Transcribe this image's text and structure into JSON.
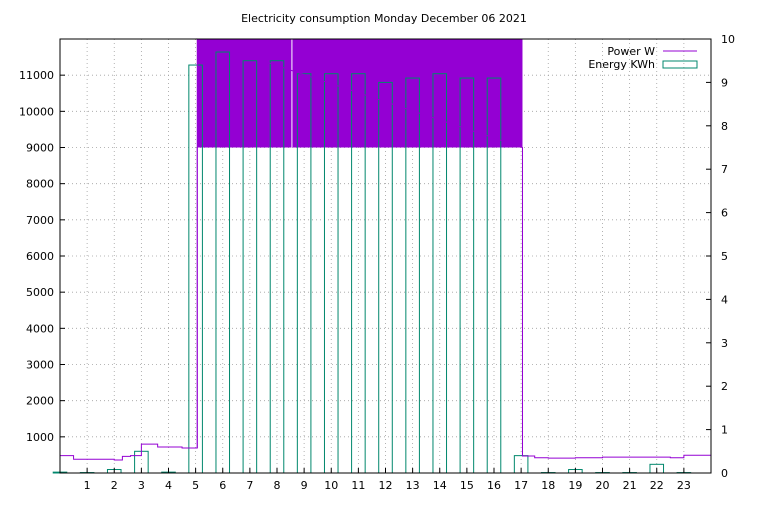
{
  "chart_data": {
    "type": "line",
    "title": "Electricity consumption Monday December 06 2021",
    "xlabel": "",
    "ylabel": "",
    "y2label": "",
    "xlim": [
      0,
      24
    ],
    "ylim": [
      0,
      12000
    ],
    "y2lim": [
      0,
      10
    ],
    "x_ticks": [
      1,
      2,
      3,
      4,
      5,
      6,
      7,
      8,
      9,
      10,
      11,
      12,
      13,
      14,
      15,
      16,
      17,
      18,
      19,
      20,
      21,
      22,
      23
    ],
    "y_ticks": [
      1000,
      2000,
      3000,
      4000,
      5000,
      6000,
      7000,
      8000,
      9000,
      10000,
      11000
    ],
    "y2_ticks": [
      0,
      1,
      2,
      3,
      4,
      5,
      6,
      7,
      8,
      9,
      10
    ],
    "grid": true,
    "legend_position": "top-right",
    "series": [
      {
        "name": "Power W",
        "axis": "y",
        "style": "step",
        "color": "#9400d3",
        "points": [
          [
            0,
            480
          ],
          [
            0.5,
            380
          ],
          [
            1,
            380
          ],
          [
            1.5,
            380
          ],
          [
            2,
            360
          ],
          [
            2.3,
            460
          ],
          [
            2.6,
            480
          ],
          [
            3,
            800
          ],
          [
            3.6,
            720
          ],
          [
            4,
            720
          ],
          [
            4.5,
            690
          ],
          [
            5.06,
            12000
          ],
          [
            5.2,
            9000
          ],
          [
            5.4,
            12000
          ],
          [
            5.6,
            9000
          ],
          [
            5.8,
            12000
          ],
          [
            6,
            9000
          ],
          [
            6.2,
            12000
          ],
          [
            6.4,
            9000
          ],
          [
            6.6,
            12000
          ],
          [
            6.8,
            9000
          ],
          [
            7,
            12000
          ],
          [
            7.2,
            9000
          ],
          [
            7.4,
            12000
          ],
          [
            7.6,
            9000
          ],
          [
            7.8,
            12000
          ],
          [
            8,
            9000
          ],
          [
            8.2,
            12000
          ],
          [
            8.4,
            9000
          ],
          [
            8.6,
            12000
          ],
          [
            8.8,
            9000
          ],
          [
            9,
            12000
          ],
          [
            9.2,
            9000
          ],
          [
            9.4,
            12000
          ],
          [
            9.6,
            9000
          ],
          [
            9.8,
            12000
          ],
          [
            10,
            9000
          ],
          [
            10.2,
            12000
          ],
          [
            10.4,
            9000
          ],
          [
            10.6,
            12000
          ],
          [
            10.8,
            9000
          ],
          [
            11,
            12000
          ],
          [
            11.2,
            9000
          ],
          [
            11.4,
            12000
          ],
          [
            11.6,
            9000
          ],
          [
            11.8,
            12000
          ],
          [
            12,
            9000
          ],
          [
            12.2,
            12000
          ],
          [
            12.4,
            9000
          ],
          [
            12.6,
            12000
          ],
          [
            12.8,
            9000
          ],
          [
            13,
            12000
          ],
          [
            13.2,
            9000
          ],
          [
            13.4,
            12000
          ],
          [
            13.6,
            9000
          ],
          [
            13.8,
            12000
          ],
          [
            14,
            9000
          ],
          [
            14.2,
            12000
          ],
          [
            14.4,
            9000
          ],
          [
            14.6,
            12000
          ],
          [
            14.8,
            9000
          ],
          [
            15,
            12000
          ],
          [
            15.2,
            9000
          ],
          [
            15.4,
            12000
          ],
          [
            15.6,
            9000
          ],
          [
            15.8,
            12000
          ],
          [
            16,
            9000
          ],
          [
            16.2,
            12000
          ],
          [
            16.4,
            9000
          ],
          [
            16.6,
            12000
          ],
          [
            16.8,
            9000
          ],
          [
            17.05,
            470
          ],
          [
            17.5,
            420
          ],
          [
            18,
            410
          ],
          [
            18.5,
            410
          ],
          [
            19,
            420
          ],
          [
            20,
            440
          ],
          [
            20.5,
            440
          ],
          [
            21,
            440
          ],
          [
            21.5,
            440
          ],
          [
            22,
            440
          ],
          [
            22.5,
            420
          ],
          [
            23,
            490
          ],
          [
            24,
            490
          ]
        ]
      },
      {
        "name": "Energy KWh",
        "axis": "y2",
        "style": "boxes",
        "color": "#00876c",
        "x": [
          0,
          1,
          2,
          3,
          4,
          5,
          6,
          7,
          8,
          9,
          10,
          11,
          12,
          13,
          14,
          15,
          16,
          17,
          18,
          19,
          20,
          21,
          22,
          23
        ],
        "values": [
          0.02,
          0.01,
          0.08,
          0.5,
          0.02,
          9.4,
          9.7,
          9.5,
          9.5,
          9.2,
          9.2,
          9.2,
          9.0,
          9.1,
          9.2,
          9.1,
          9.1,
          0.4,
          0.01,
          0.08,
          0.01,
          0.01,
          0.2,
          0.01
        ]
      }
    ],
    "fill_band": {
      "x_from": 5.06,
      "x_to": 17.05,
      "y_from": 9000,
      "y_to": 12000,
      "color": "#9400d3"
    }
  }
}
